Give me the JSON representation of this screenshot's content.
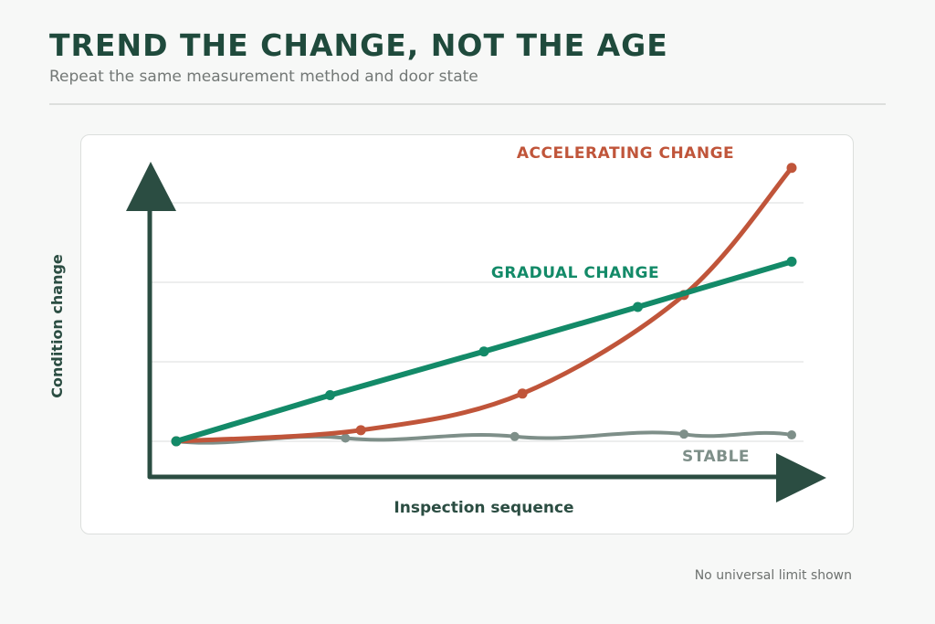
{
  "header": {
    "title": "TREND THE CHANGE, NOT THE AGE",
    "subtitle": "Repeat the same measurement method and door state"
  },
  "footnote": "No universal limit shown",
  "colors": {
    "title": "#1f4a3c",
    "axis": "#2b4d42",
    "gradual": "#138a68",
    "accelerating": "#c0553a",
    "stable": "#7e8f89",
    "grid": "#e2e4e3"
  },
  "chart_data": {
    "type": "line",
    "xlabel": "Inspection sequence",
    "ylabel": "Condition change",
    "xlim": [
      0,
      4
    ],
    "ylim": [
      0,
      3
    ],
    "gridlines": [
      0,
      1,
      2,
      3
    ],
    "series": [
      {
        "name": "GRADUAL CHANGE",
        "x": [
          0,
          1,
          2,
          3,
          4
        ],
        "y": [
          0,
          0.58,
          1.13,
          1.69,
          2.26
        ]
      },
      {
        "name": "ACCELERATING CHANGE",
        "x": [
          0,
          1.2,
          2.25,
          3.3,
          4
        ],
        "y": [
          0,
          0.14,
          0.6,
          1.84,
          3.44
        ]
      },
      {
        "name": "STABLE",
        "x": [
          0,
          1.1,
          2.2,
          3.3,
          4
        ],
        "y": [
          0,
          0.04,
          0.06,
          0.09,
          0.08
        ]
      }
    ]
  }
}
